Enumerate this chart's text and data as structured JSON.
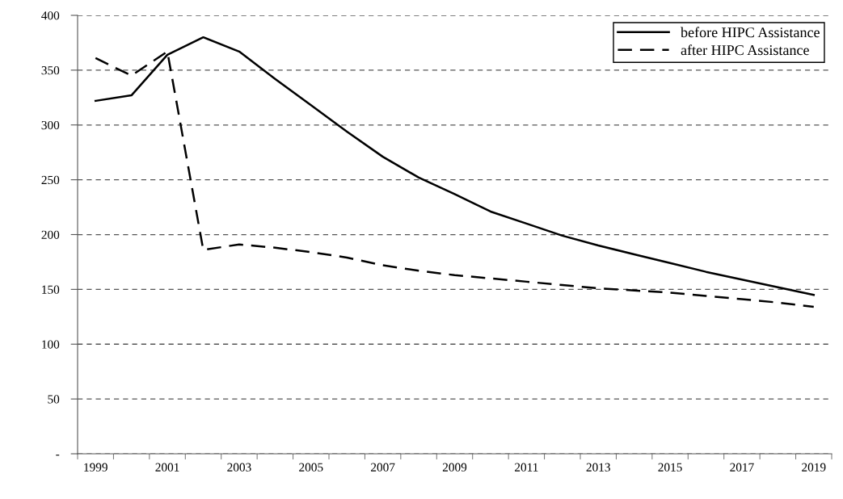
{
  "chart_data": {
    "type": "line",
    "categories": [
      "1999",
      null,
      "2001",
      null,
      "2003",
      null,
      "2005",
      null,
      "2007",
      null,
      "2009",
      null,
      "2011",
      null,
      "2013",
      null,
      "2015",
      null,
      "2017",
      null,
      "2019"
    ],
    "series": [
      {
        "name": "before HIPC Assistance",
        "color": "#000000",
        "line_style": "solid",
        "values": [
          322,
          327,
          364,
          380,
          367,
          342,
          318,
          294,
          271,
          252,
          237,
          221,
          210,
          199,
          190,
          182,
          174,
          166,
          159,
          152,
          145
        ]
      },
      {
        "name": "after HIPC Assistance",
        "color": "#000000",
        "line_style": "dashed",
        "values": [
          361,
          345,
          367,
          186,
          191,
          188,
          184,
          179,
          172,
          167,
          163,
          160,
          157,
          154,
          151,
          149,
          147,
          144,
          141,
          138,
          134
        ]
      }
    ],
    "ylim": [
      0,
      400
    ],
    "yticks": [
      {
        "value": 0,
        "label": "-"
      },
      50,
      100,
      150,
      200,
      250,
      300,
      350,
      400
    ],
    "grid": "y",
    "legend": "top right",
    "marker": "none"
  }
}
